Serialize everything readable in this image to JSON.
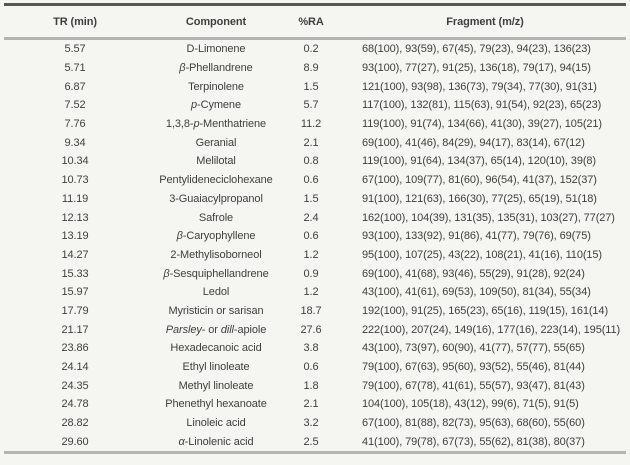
{
  "table": {
    "headers": [
      {
        "label": "TR (min)"
      },
      {
        "label": "Component"
      },
      {
        "label": "%RA"
      },
      {
        "label": "Fragment (m/z)"
      }
    ],
    "rows": [
      {
        "tr": "5.57",
        "component": "D-Limonene",
        "ra": "0.2",
        "fragments": "68(100), 93(59), 67(45), 79(23), 94(23), 136(23)"
      },
      {
        "tr": "5.71",
        "component": "*β*-Phellandrene",
        "ra": "8.9",
        "fragments": "93(100), 77(27), 91(25), 136(18), 79(17), 94(15)"
      },
      {
        "tr": "6.87",
        "component": "Terpinolene",
        "ra": "1.5",
        "fragments": "121(100), 93(98), 136(73), 79(34), 77(30), 91(31)"
      },
      {
        "tr": "7.52",
        "component": "*p*-Cymene",
        "ra": "5.7",
        "fragments": "117(100), 132(81), 115(63), 91(54), 92(23), 65(23)"
      },
      {
        "tr": "7.76",
        "component": "1,3,8-*p*-Menthatriene",
        "ra": "11.2",
        "fragments": "119(100), 91(74), 134(66), 41(30), 39(27), 105(21)"
      },
      {
        "tr": "9.34",
        "component": "Geranial",
        "ra": "2.1",
        "fragments": "69(100), 41(46), 84(29), 94(17), 83(14), 67(12)"
      },
      {
        "tr": "10.34",
        "component": "Melilotal",
        "ra": "0.8",
        "fragments": "119(100), 91(64), 134(37), 65(14), 120(10), 39(8)"
      },
      {
        "tr": "10.73",
        "component": "Pentylideneciclohexane",
        "ra": "0.6",
        "fragments": "67(100), 109(77), 81(60), 96(54), 41(37), 152(37)"
      },
      {
        "tr": "11.19",
        "component": "3-Guaiacylpropanol",
        "ra": "1.5",
        "fragments": "91(100), 121(63), 166(30), 77(25), 65(19), 51(18)"
      },
      {
        "tr": "12.13",
        "component": "Safrole",
        "ra": "2.4",
        "fragments": "162(100), 104(39), 131(35), 135(31), 103(27), 77(27)"
      },
      {
        "tr": "13.19",
        "component": "*β*-Caryophyllene",
        "ra": "0.6",
        "fragments": "93(100), 133(92), 91(86), 41(77), 79(76), 69(75)"
      },
      {
        "tr": "14.27",
        "component": "2-Methylisoborneol",
        "ra": "1.2",
        "fragments": "95(100), 107(25), 43(22), 108(21), 41(16), 110(15)"
      },
      {
        "tr": "15.33",
        "component": "*β*-Sesquiphellandrene",
        "ra": "0.9",
        "fragments": "69(100), 41(68), 93(46), 55(29), 91(28), 92(24)"
      },
      {
        "tr": "15.97",
        "component": "Ledol",
        "ra": "1.2",
        "fragments": "43(100), 41(61), 69(53), 109(50), 81(34), 55(34)"
      },
      {
        "tr": "17.79",
        "component": "Myristicin or sarisan",
        "ra": "18.7",
        "fragments": "192(100), 91(25), 165(23), 65(16), 119(15), 161(14)"
      },
      {
        "tr": "21.17",
        "component": "*Parsley*- or *dill*-apiole",
        "ra": "27.6",
        "fragments": "222(100), 207(24), 149(16), 177(16), 223(14), 195(11)"
      },
      {
        "tr": "23.86",
        "component": "Hexadecanoic acid",
        "ra": "3.8",
        "fragments": "43(100), 73(97), 60(90), 41(77), 57(77), 55(65)"
      },
      {
        "tr": "24.14",
        "component": "Ethyl linoleate",
        "ra": "0.6",
        "fragments": "79(100), 67(63), 95(60), 93(52), 55(46), 81(44)"
      },
      {
        "tr": "24.35",
        "component": "Methyl linoleate",
        "ra": "1.8",
        "fragments": "79(100), 67(78), 41(61), 55(57), 93(47), 81(43)"
      },
      {
        "tr": "24.78",
        "component": "Phenethyl hexanoate",
        "ra": "2.1",
        "fragments": "104(100), 105(18), 43(12), 99(6), 71(5), 91(5)"
      },
      {
        "tr": "28.82",
        "component": "Linoleic acid",
        "ra": "3.2",
        "fragments": "67(100), 81(88), 82(73), 95(63), 68(60), 55(60)"
      },
      {
        "tr": "29.60",
        "component": "*α*-Linolenic acid",
        "ra": "2.5",
        "fragments": "41(100), 79(78), 67(73), 55(62), 81(38), 80(37)"
      }
    ]
  },
  "colors": {
    "page_background": "#f5f5f2",
    "text": "#3f3f3f",
    "top_rule": "#565656",
    "gray_rule": "#b4b4b4"
  }
}
